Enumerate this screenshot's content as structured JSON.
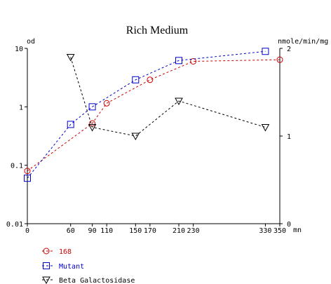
{
  "chart_data": {
    "type": "line",
    "title": "Rich Medium",
    "xlabel": "mn",
    "ylabel_left": "od",
    "ylabel_right": "nmole/min/mg",
    "x_ticks": [
      0,
      60,
      90,
      110,
      150,
      170,
      210,
      230,
      330,
      350
    ],
    "y_left": {
      "scale": "log",
      "range": [
        0.01,
        10
      ],
      "ticks": [
        "0.01",
        "0.1",
        "1",
        "10"
      ]
    },
    "y_right": {
      "scale": "linear",
      "range": [
        0,
        2
      ],
      "ticks": [
        "0",
        "1",
        "2"
      ]
    },
    "grid": false,
    "legend_position": "bottom-left",
    "series": [
      {
        "name": "168",
        "axis": "left",
        "color": "#cc0000",
        "marker": "circle",
        "x": [
          0,
          90,
          110,
          170,
          230,
          350
        ],
        "y": [
          0.08,
          0.52,
          1.15,
          2.9,
          6.0,
          6.4
        ]
      },
      {
        "name": "Mutant",
        "axis": "left",
        "color": "#0000cc",
        "marker": "square",
        "x": [
          0,
          60,
          90,
          150,
          210,
          330
        ],
        "y": [
          0.06,
          0.5,
          1.0,
          2.9,
          6.2,
          8.9
        ]
      },
      {
        "name": "Beta Galactosidase",
        "axis": "right",
        "color": "#000000",
        "marker": "triangle-down",
        "x": [
          60,
          90,
          150,
          210,
          330
        ],
        "y": [
          1.9,
          1.1,
          1.0,
          1.4,
          1.1
        ]
      }
    ]
  }
}
